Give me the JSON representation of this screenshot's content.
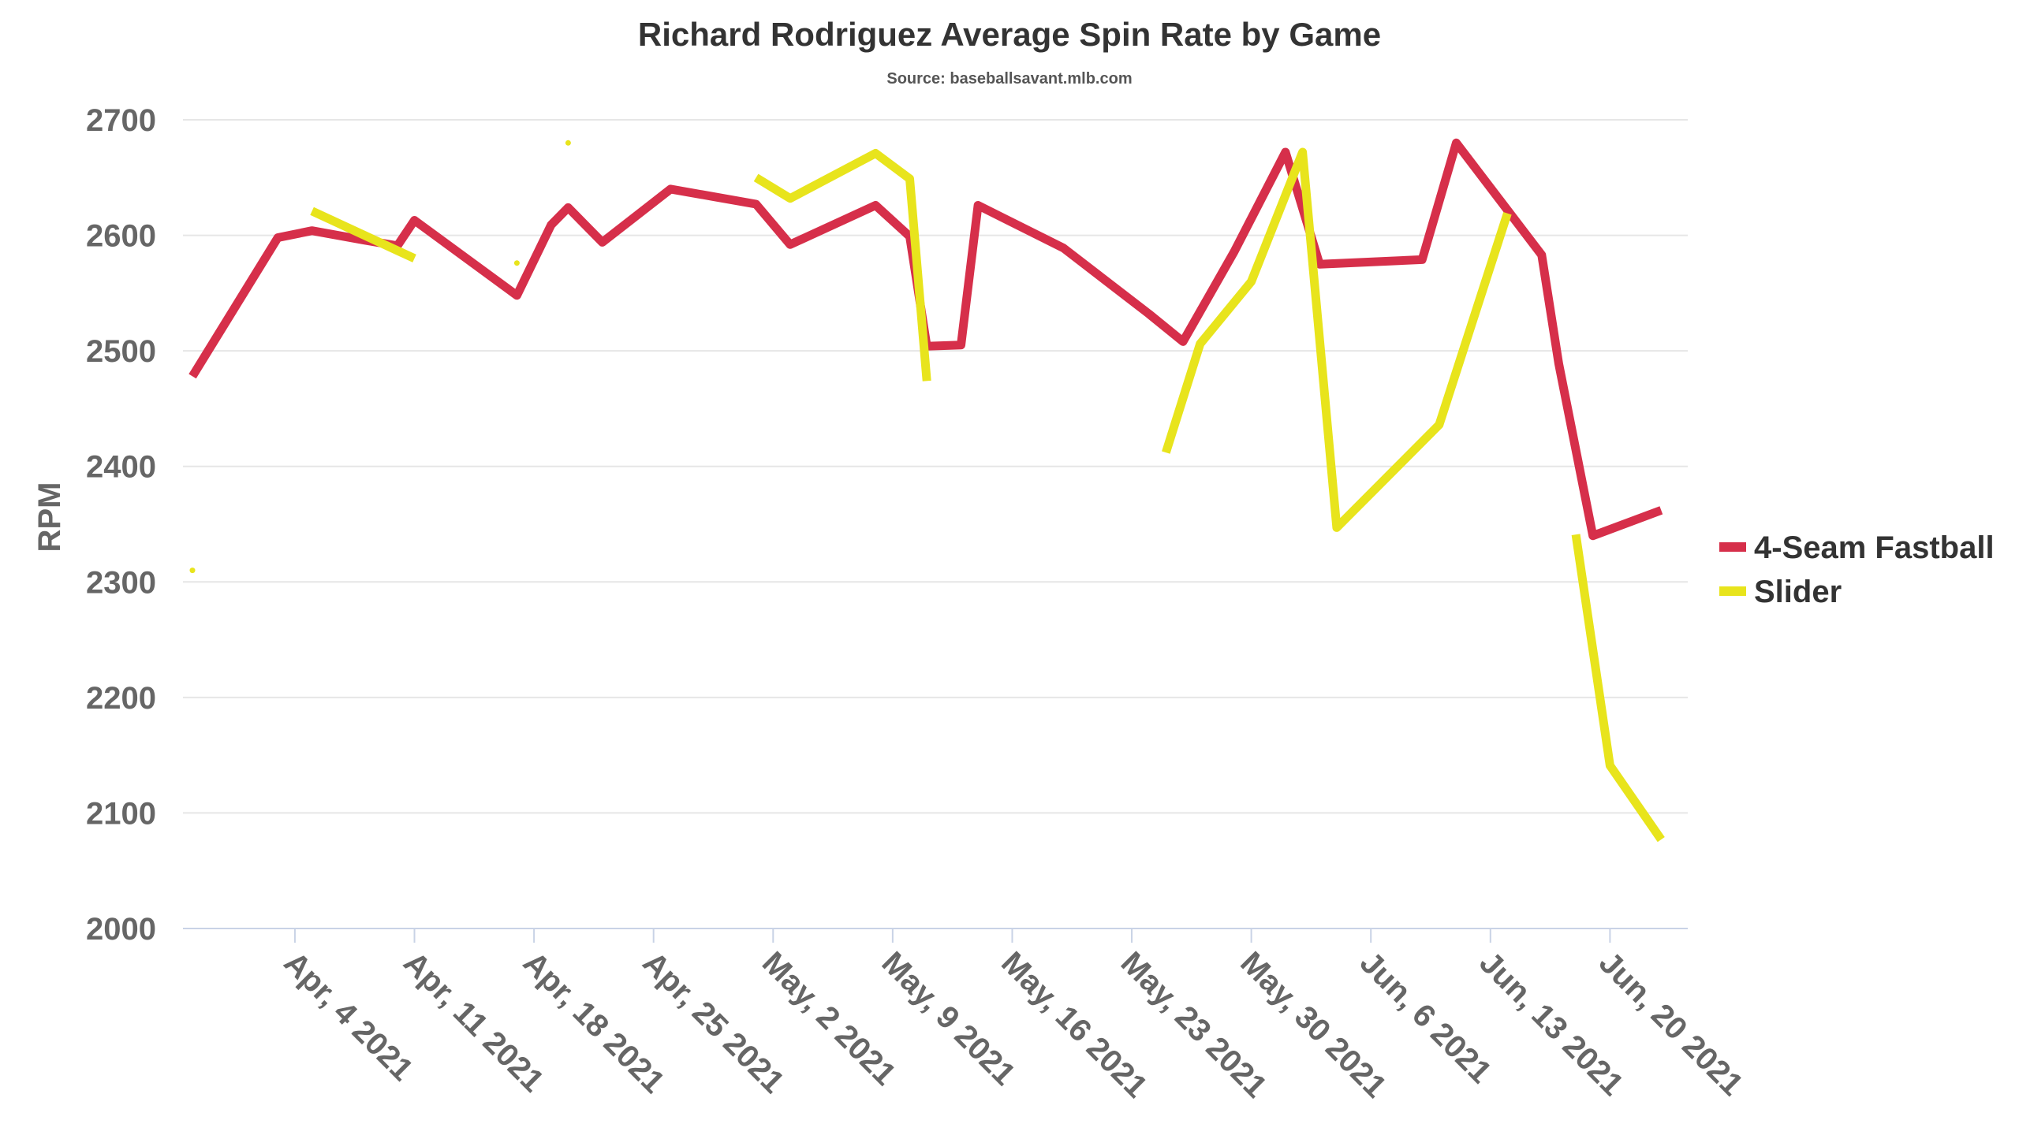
{
  "chart_data": {
    "type": "line",
    "title": "Richard Rodriguez Average Spin Rate by Game",
    "subtitle": "Source: baseballsavant.mlb.com",
    "ylabel": "RPM",
    "ylim": [
      2000,
      2700
    ],
    "yticks": [
      2000,
      2100,
      2200,
      2300,
      2400,
      2500,
      2600,
      2700
    ],
    "xlim": [
      "2021-03-29",
      "2021-06-24"
    ],
    "xticks": [
      {
        "date": "2021-04-04",
        "label": "Apr, 4 2021"
      },
      {
        "date": "2021-04-11",
        "label": "Apr, 11 2021"
      },
      {
        "date": "2021-04-18",
        "label": "Apr, 18 2021"
      },
      {
        "date": "2021-04-25",
        "label": "Apr, 25 2021"
      },
      {
        "date": "2021-05-02",
        "label": "May, 2 2021"
      },
      {
        "date": "2021-05-09",
        "label": "May, 9 2021"
      },
      {
        "date": "2021-05-16",
        "label": "May, 16 2021"
      },
      {
        "date": "2021-05-23",
        "label": "May, 23 2021"
      },
      {
        "date": "2021-05-30",
        "label": "May, 30 2021"
      },
      {
        "date": "2021-06-06",
        "label": "Jun, 6 2021"
      },
      {
        "date": "2021-06-13",
        "label": "Jun, 13 2021"
      },
      {
        "date": "2021-06-20",
        "label": "Jun, 20 2021"
      }
    ],
    "legend_position": "right",
    "grid": true,
    "series": [
      {
        "name": "4-Seam Fastball",
        "color": "#d62f4a",
        "points": [
          {
            "x": "2021-03-29",
            "y": 2478
          },
          {
            "x": "2021-04-03",
            "y": 2598
          },
          {
            "x": "2021-04-05",
            "y": 2604
          },
          {
            "x": "2021-04-08",
            "y": 2596
          },
          {
            "x": "2021-04-10",
            "y": 2591
          },
          {
            "x": "2021-04-11",
            "y": 2613
          },
          {
            "x": "2021-04-17",
            "y": 2548
          },
          {
            "x": "2021-04-19",
            "y": 2609
          },
          {
            "x": "2021-04-20",
            "y": 2624
          },
          {
            "x": "2021-04-22",
            "y": 2594
          },
          {
            "x": "2021-04-26",
            "y": 2640
          },
          {
            "x": "2021-05-01",
            "y": 2627
          },
          {
            "x": "2021-05-03",
            "y": 2592
          },
          {
            "x": "2021-05-08",
            "y": 2626
          },
          {
            "x": "2021-05-10",
            "y": 2599
          },
          {
            "x": "2021-05-11",
            "y": 2504
          },
          {
            "x": "2021-05-13",
            "y": 2505
          },
          {
            "x": "2021-05-14",
            "y": 2626
          },
          {
            "x": "2021-05-19",
            "y": 2589
          },
          {
            "x": "2021-05-24",
            "y": 2532
          },
          {
            "x": "2021-05-26",
            "y": 2508
          },
          {
            "x": "2021-05-29",
            "y": 2586
          },
          {
            "x": "2021-06-01",
            "y": 2672
          },
          {
            "x": "2021-06-03",
            "y": 2575
          },
          {
            "x": "2021-06-09",
            "y": 2579
          },
          {
            "x": "2021-06-11",
            "y": 2680
          },
          {
            "x": "2021-06-16",
            "y": 2583
          },
          {
            "x": "2021-06-17",
            "y": 2489
          },
          {
            "x": "2021-06-19",
            "y": 2340
          },
          {
            "x": "2021-06-23",
            "y": 2362
          }
        ]
      },
      {
        "name": "Slider",
        "color": "#e8e41c",
        "points": [
          {
            "x": "2021-03-29",
            "y": 2310
          },
          {
            "x": null,
            "y": null
          },
          {
            "x": "2021-04-05",
            "y": 2621
          },
          {
            "x": "2021-04-11",
            "y": 2580
          },
          {
            "x": null,
            "y": null
          },
          {
            "x": "2021-04-17",
            "y": 2576
          },
          {
            "x": null,
            "y": null
          },
          {
            "x": "2021-04-20",
            "y": 2680
          },
          {
            "x": null,
            "y": null
          },
          {
            "x": "2021-05-01",
            "y": 2650
          },
          {
            "x": "2021-05-03",
            "y": 2632
          },
          {
            "x": "2021-05-08",
            "y": 2671
          },
          {
            "x": "2021-05-10",
            "y": 2649
          },
          {
            "x": "2021-05-11",
            "y": 2474
          },
          {
            "x": null,
            "y": null
          },
          {
            "x": "2021-05-25",
            "y": 2412
          },
          {
            "x": "2021-05-27",
            "y": 2506
          },
          {
            "x": "2021-05-30",
            "y": 2560
          },
          {
            "x": "2021-06-02",
            "y": 2672
          },
          {
            "x": "2021-06-04",
            "y": 2347
          },
          {
            "x": "2021-06-10",
            "y": 2436
          },
          {
            "x": "2021-06-14",
            "y": 2619
          },
          {
            "x": null,
            "y": null
          },
          {
            "x": "2021-06-18",
            "y": 2341
          },
          {
            "x": "2021-06-20",
            "y": 2141
          },
          {
            "x": "2021-06-23",
            "y": 2077
          }
        ]
      }
    ]
  }
}
